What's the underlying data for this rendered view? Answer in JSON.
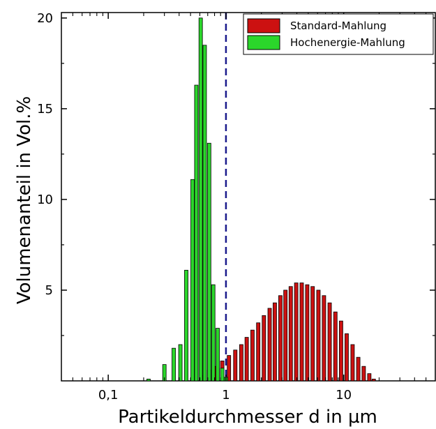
{
  "chart_data": {
    "type": "bar",
    "xlabel": "Partikeldurchmesser d in µm",
    "ylabel": "Volumenanteil in Vol.%",
    "x_scale": "log",
    "xlim": [
      0.04,
      60
    ],
    "ylim": [
      0,
      20.3
    ],
    "x_ticks": [
      {
        "value": 0.1,
        "label": "0,1"
      },
      {
        "value": 1,
        "label": "1"
      },
      {
        "value": 10,
        "label": "10"
      }
    ],
    "y_ticks": [
      {
        "value": 5,
        "label": "5"
      },
      {
        "value": 10,
        "label": "10"
      },
      {
        "value": 15,
        "label": "15"
      },
      {
        "value": 20,
        "label": "20"
      }
    ],
    "legend_position": "top-right",
    "reference_line": {
      "x": 1,
      "style": "dashed",
      "color": "#1a1a8c"
    },
    "series": [
      {
        "name": "Standard-Mahlung",
        "color": "#cc1111",
        "x": [
          0.55,
          0.64,
          0.72,
          0.82,
          0.93,
          1.06,
          1.2,
          1.35,
          1.5,
          1.68,
          1.88,
          2.1,
          2.35,
          2.6,
          2.9,
          3.2,
          3.55,
          3.95,
          4.4,
          4.9,
          5.45,
          6.1,
          6.8,
          7.6,
          8.5,
          9.5,
          10.6,
          11.9,
          13.3,
          14.8,
          16.5,
          18.0
        ],
        "values": [
          0.1,
          0.3,
          0.6,
          0.8,
          1.1,
          1.4,
          1.7,
          2.0,
          2.4,
          2.8,
          3.2,
          3.6,
          4.0,
          4.3,
          4.7,
          5.0,
          5.2,
          5.4,
          5.4,
          5.3,
          5.2,
          5.0,
          4.7,
          4.3,
          3.8,
          3.3,
          2.6,
          2.0,
          1.3,
          0.8,
          0.4,
          0.1
        ]
      },
      {
        "name": "Hochenergie-Mahlung",
        "color": "#2bd62b",
        "x": [
          0.22,
          0.3,
          0.36,
          0.41,
          0.46,
          0.52,
          0.56,
          0.61,
          0.66,
          0.72,
          0.78,
          0.85,
          0.93,
          1.0
        ],
        "values": [
          0.1,
          0.9,
          1.8,
          2.0,
          6.1,
          11.1,
          16.3,
          20.0,
          18.5,
          13.1,
          5.3,
          2.9,
          0.7,
          0.2
        ]
      }
    ]
  }
}
